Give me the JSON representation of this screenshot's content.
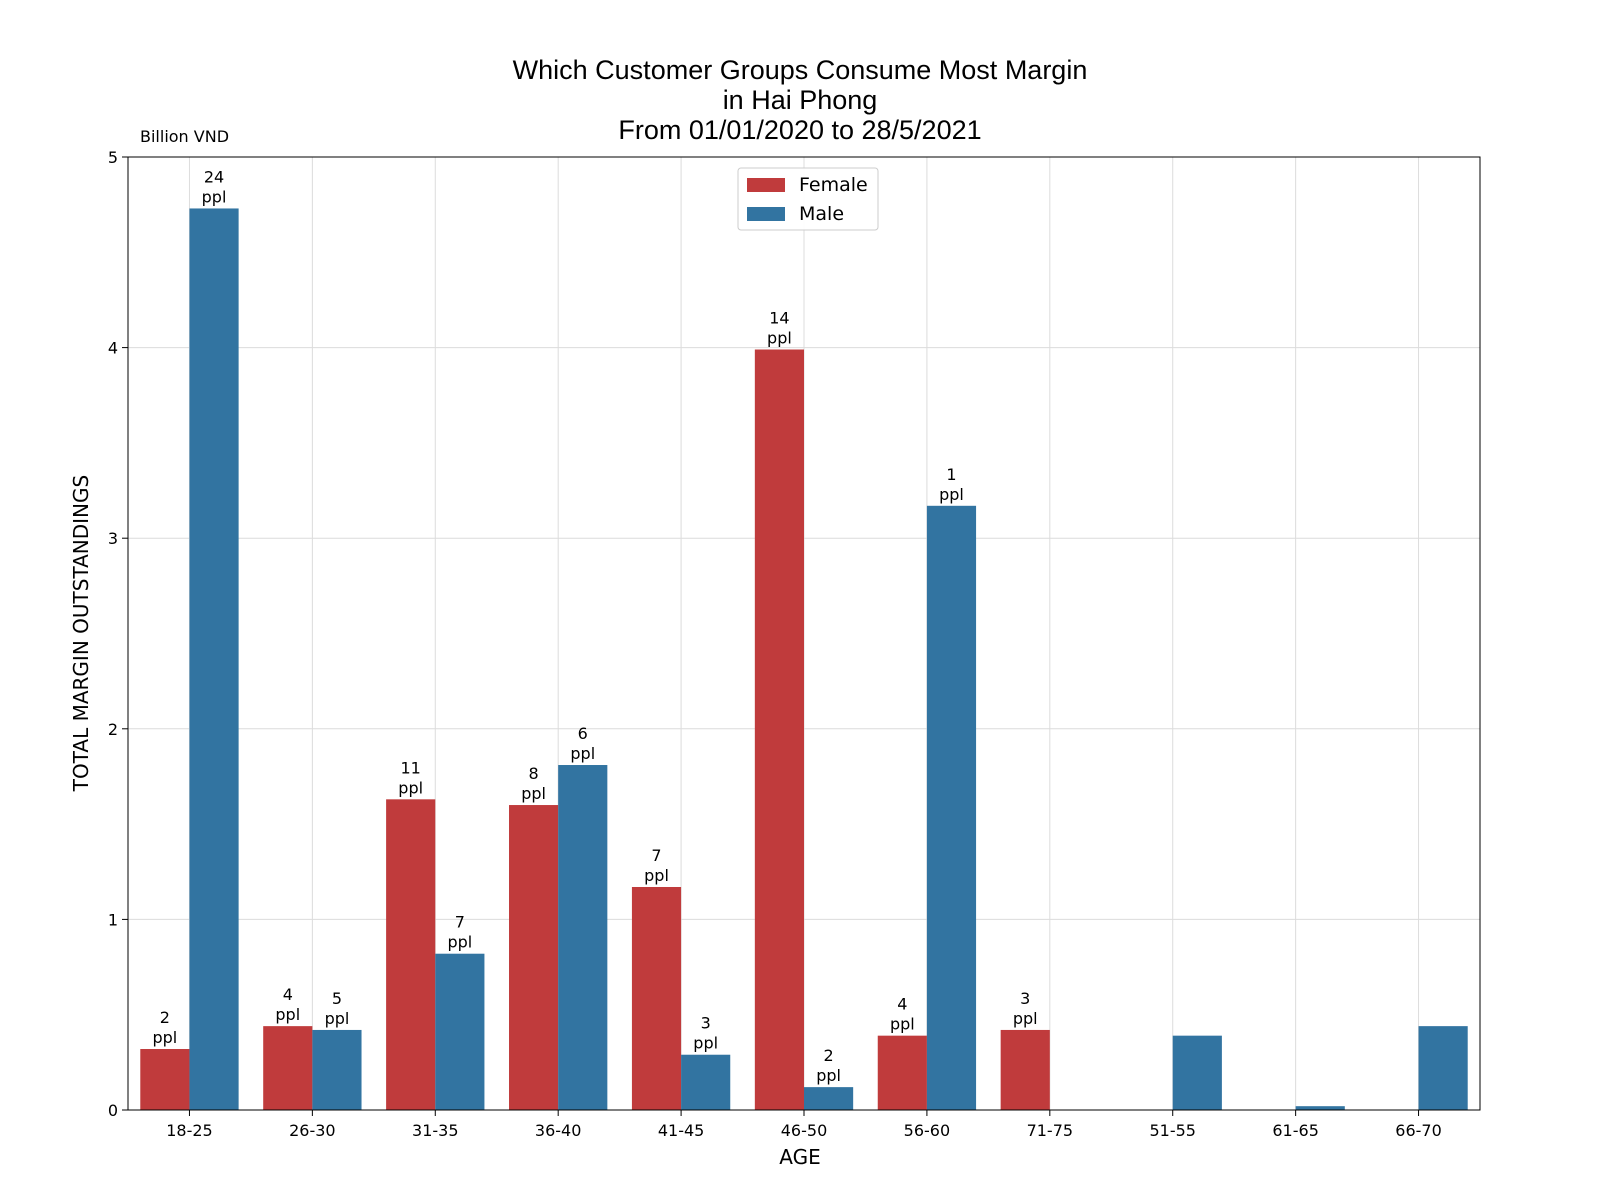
{
  "chart_data": {
    "type": "bar",
    "title": [
      "Which Customer Groups Consume Most Margin",
      "in Hai Phong",
      "From 01/01/2020 to 28/5/2021"
    ],
    "unit_label": "Billion VND",
    "xlabel": "AGE",
    "ylabel": "TOTAL MARGIN OUTSTANDINGS",
    "ylim": [
      0,
      5
    ],
    "yticks": [
      "0",
      "1",
      "2",
      "3",
      "4",
      "5"
    ],
    "grid": true,
    "legend_position": "top-center",
    "categories": [
      "18-25",
      "26-30",
      "31-35",
      "36-40",
      "41-45",
      "46-50",
      "56-60",
      "71-75",
      "51-55",
      "61-65",
      "66-70"
    ],
    "series": [
      {
        "name": "Female",
        "color": "#c03b3c",
        "values": [
          0.32,
          0.44,
          1.63,
          1.6,
          1.17,
          3.99,
          0.39,
          0.42,
          null,
          null,
          null
        ],
        "labels": [
          [
            "2",
            "ppl"
          ],
          [
            "4",
            "ppl"
          ],
          [
            "11",
            "ppl"
          ],
          [
            "8",
            "ppl"
          ],
          [
            "7",
            "ppl"
          ],
          [
            "14",
            "ppl"
          ],
          [
            "4",
            "ppl"
          ],
          [
            "3",
            "ppl"
          ],
          null,
          null,
          null
        ]
      },
      {
        "name": "Male",
        "color": "#3274a1",
        "values": [
          4.73,
          0.42,
          0.82,
          1.81,
          0.29,
          0.12,
          3.17,
          null,
          0.39,
          0.02,
          0.44
        ],
        "labels": [
          [
            "24",
            "ppl"
          ],
          [
            "5",
            "ppl"
          ],
          [
            "7",
            "ppl"
          ],
          [
            "6",
            "ppl"
          ],
          [
            "3",
            "ppl"
          ],
          [
            "2",
            "ppl"
          ],
          [
            "1",
            "ppl"
          ],
          null,
          null,
          null,
          null
        ]
      }
    ]
  }
}
